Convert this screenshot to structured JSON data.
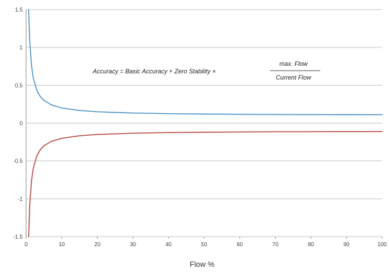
{
  "chart_data": {
    "type": "line",
    "title": "",
    "xlabel": "Flow %",
    "ylabel": "",
    "xlim": [
      0,
      100
    ],
    "ylim": [
      -1.5,
      1.5
    ],
    "x_ticks": [
      "0",
      "10",
      "20",
      "30",
      "40",
      "50",
      "60",
      "70",
      "80",
      "90",
      "100"
    ],
    "y_ticks": [
      "1.5",
      "1",
      "0.5",
      "0",
      "-0.5",
      "-1",
      "-1.5"
    ],
    "grid": true,
    "annotation": {
      "lhs": "Accuracy = Basic Accuracy + Zero Stability ×",
      "numerator": "max. Flow",
      "denominator": "Current Flow"
    },
    "series": [
      {
        "color": "#4a90c8",
        "x": [
          0.7,
          1,
          1.5,
          2,
          3,
          4,
          5,
          7,
          10,
          15,
          20,
          30,
          40,
          50,
          60,
          70,
          80,
          90,
          100
        ],
        "y": [
          1.529,
          1.1,
          0.767,
          0.6,
          0.433,
          0.35,
          0.3,
          0.243,
          0.2,
          0.167,
          0.15,
          0.133,
          0.125,
          0.12,
          0.117,
          0.114,
          0.113,
          0.111,
          0.11
        ]
      },
      {
        "color": "#b5473f",
        "x": [
          0.7,
          1,
          1.5,
          2,
          3,
          4,
          5,
          7,
          10,
          15,
          20,
          30,
          40,
          50,
          60,
          70,
          80,
          90,
          100
        ],
        "y": [
          -1.529,
          -1.1,
          -0.767,
          -0.6,
          -0.433,
          -0.35,
          -0.3,
          -0.243,
          -0.2,
          -0.167,
          -0.15,
          -0.133,
          -0.125,
          -0.12,
          -0.117,
          -0.114,
          -0.113,
          -0.111,
          -0.11
        ]
      }
    ]
  }
}
